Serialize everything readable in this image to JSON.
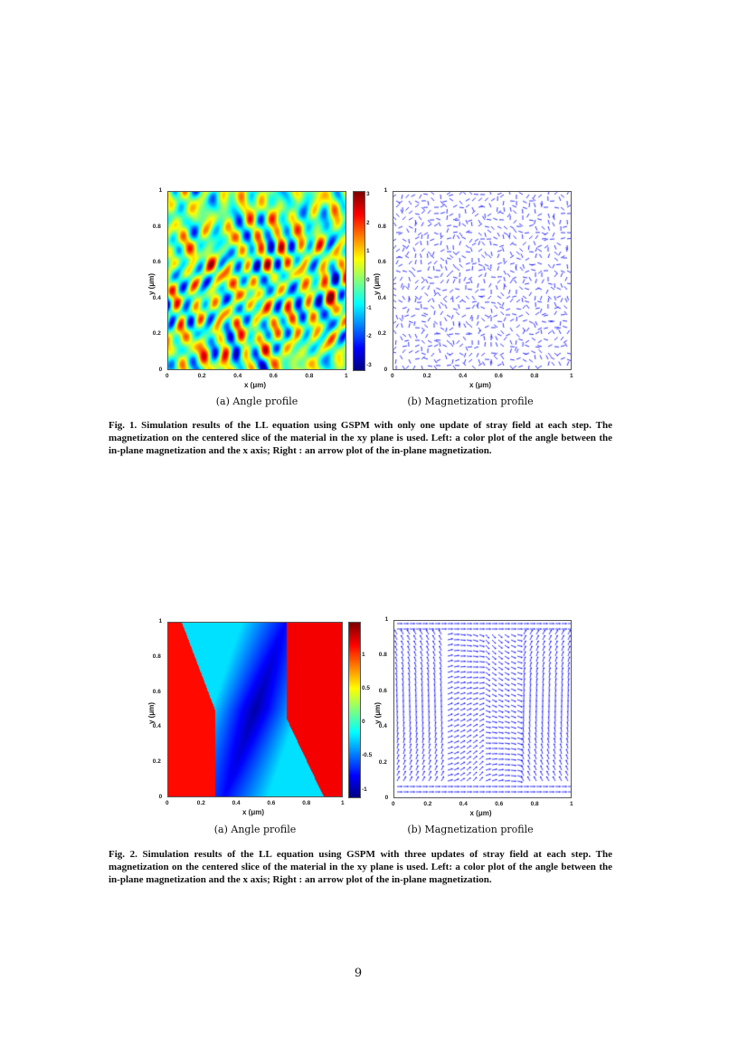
{
  "figures": [
    {
      "id": "fig1",
      "panels": [
        {
          "subcaption": "(a) Angle profile",
          "xlabel": "x (μm)",
          "ylabel": "y (μm)",
          "xticks": [
            "0",
            "0.2",
            "0.4",
            "0.6",
            "0.8",
            "1"
          ],
          "yticks": [
            "0",
            "0.2",
            "0.4",
            "0.6",
            "0.8",
            "1"
          ],
          "colorbar_ticks": [
            "3",
            "2",
            "1",
            "0",
            "-1",
            "-2",
            "-3"
          ],
          "colormap": "jet",
          "color_range": [
            -3.14,
            3.14
          ]
        },
        {
          "subcaption": "(b) Magnetization profile",
          "xlabel": "x (μm)",
          "ylabel": "y (μm)",
          "xticks": [
            "0",
            "0.2",
            "0.4",
            "0.6",
            "0.8",
            "1"
          ],
          "yticks": [
            "0",
            "0.2",
            "0.4",
            "0.6",
            "0.8",
            "1"
          ],
          "arrow_color": "#0000ff"
        }
      ],
      "caption": "Fig. 1. Simulation results of the LL equation using GSPM with only one update of stray field at each step. The magnetization on the centered slice of the material in the xy plane is used. Left: a color plot of the angle between the in-plane magnetization and the x axis; Right : an arrow plot of the in-plane magnetization."
    },
    {
      "id": "fig2",
      "panels": [
        {
          "subcaption": "(a) Angle profile",
          "xlabel": "x (μm)",
          "ylabel": "y (μm)",
          "xticks": [
            "0",
            "0.2",
            "0.4",
            "0.6",
            "0.8",
            "1"
          ],
          "yticks": [
            "0",
            "0.2",
            "0.4",
            "0.6",
            "0.8",
            "1"
          ],
          "colorbar_ticks": [
            "1",
            "0.5",
            "0",
            "-0.5",
            "-1"
          ],
          "colormap": "jet",
          "color_range": [
            -1.1,
            1.5
          ]
        },
        {
          "subcaption": "(b) Magnetization profile",
          "xlabel": "x (μm)",
          "ylabel": "y (μm)",
          "xticks": [
            "0",
            "0.2",
            "0.4",
            "0.6",
            "0.8",
            "1"
          ],
          "yticks": [
            "0",
            "0.2",
            "0.4",
            "0.6",
            "0.8",
            "1"
          ],
          "arrow_color": "#0000ff"
        }
      ],
      "caption": "Fig. 2. Simulation results of the LL equation using GSPM with three updates of stray field at each step. The magnetization on the centered slice of the material in the xy plane is used. Left: a color plot of the angle between the in-plane magnetization and the x axis; Right : an arrow plot of the in-plane magnetization."
    }
  ],
  "page_number": "9"
}
